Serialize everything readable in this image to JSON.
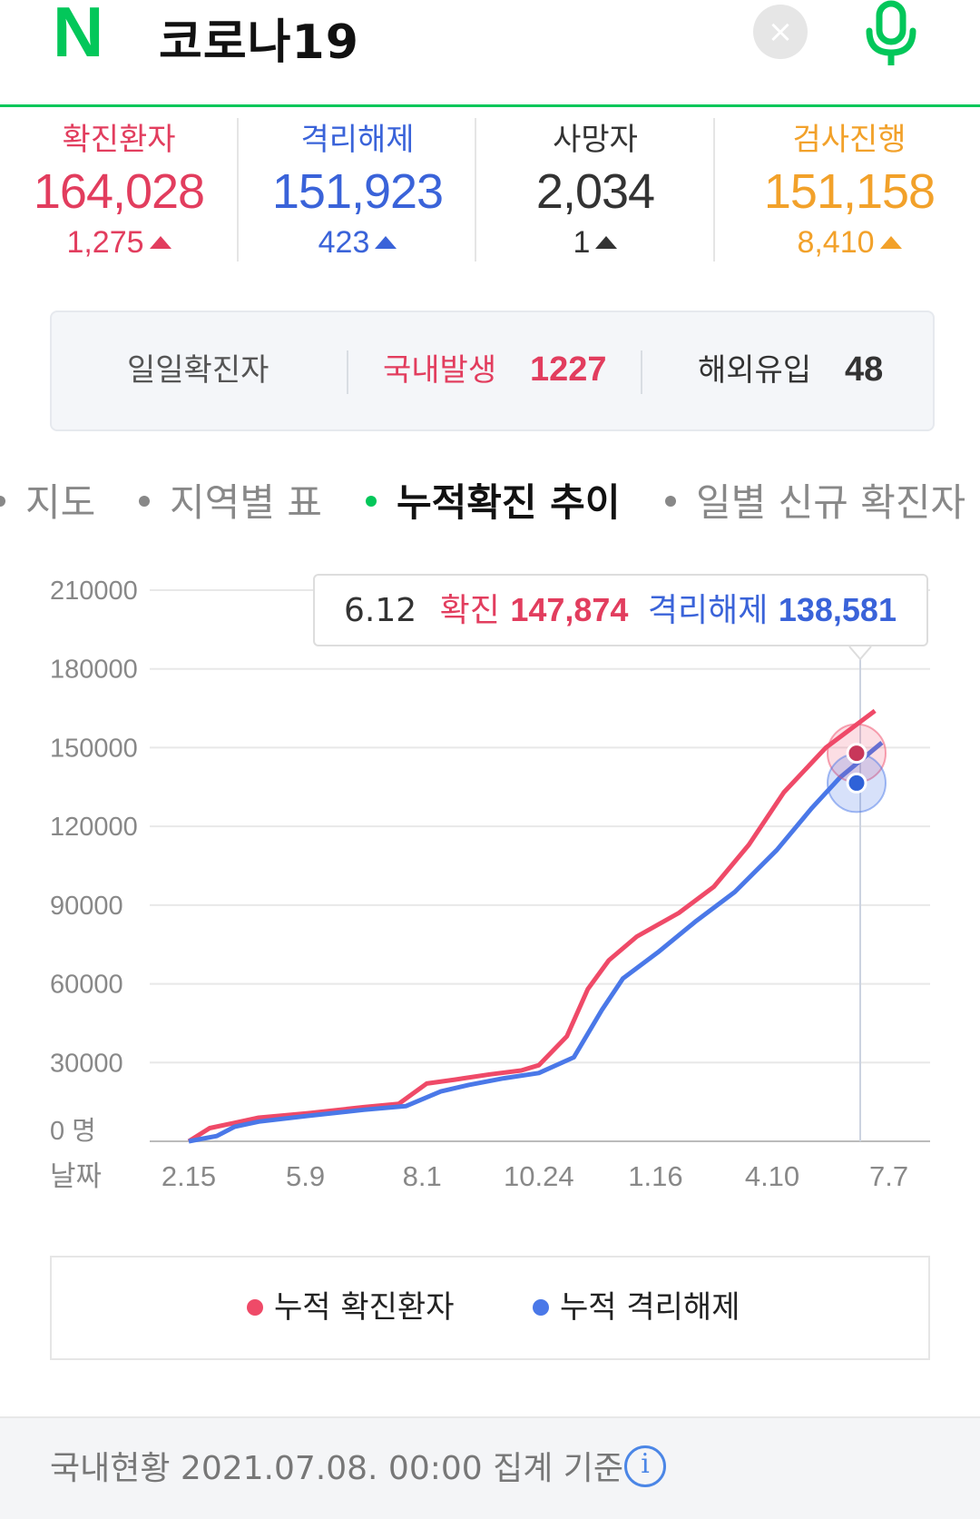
{
  "header": {
    "logo": "N",
    "query": "코로나19",
    "clear_icon": "×",
    "accent": "#03c75a"
  },
  "stats": [
    {
      "label": "확진환자",
      "value": "164,028",
      "delta": "1,275",
      "color": "#e23d5e"
    },
    {
      "label": "격리해제",
      "value": "151,923",
      "delta": "423",
      "color": "#3a63d9"
    },
    {
      "label": "사망자",
      "value": "2,034",
      "delta": "1",
      "color": "#333333"
    },
    {
      "label": "검사진행",
      "value": "151,158",
      "delta": "8,410",
      "color": "#f2a12a"
    }
  ],
  "daily": {
    "label": "일일확진자",
    "domestic_label": "국내발생",
    "domestic_value": "1227",
    "overseas_label": "해외유입",
    "overseas_value": "48"
  },
  "tabs": [
    "지도",
    "지역별 표",
    "누적확진 추이",
    "일별 신규 확진자"
  ],
  "active_tab": "누적확진 추이",
  "tooltip": {
    "date": "6.12",
    "confirmed_label": "확진",
    "confirmed_value": "147,874",
    "released_label": "격리해제",
    "released_value": "138,581"
  },
  "legend": {
    "confirmed": "누적 확진환자",
    "released": "누적 격리해제"
  },
  "footer": {
    "text": "국내현황 2021.07.08. 00:00 집계 기준",
    "info_icon": "i"
  },
  "chart_data": {
    "type": "line",
    "y_ticks": [
      "210000",
      "180000",
      "150000",
      "120000",
      "90000",
      "60000",
      "30000",
      "0 명"
    ],
    "ylim": [
      0,
      210000
    ],
    "x_title": "날짜",
    "x_ticks": [
      "2.15",
      "5.9",
      "8.1",
      "10.24",
      "1.16",
      "4.10",
      "7.7"
    ],
    "series": [
      {
        "name": "누적 확진환자",
        "color": "#ef4a68",
        "points": [
          [
            0,
            0
          ],
          [
            0.06,
            5000
          ],
          [
            0.2,
            9000
          ],
          [
            0.34,
            10700
          ],
          [
            0.5,
            13000
          ],
          [
            0.6,
            14300
          ],
          [
            0.68,
            22000
          ],
          [
            0.76,
            23500
          ],
          [
            0.86,
            25500
          ],
          [
            0.95,
            27000
          ],
          [
            1.0,
            29000
          ],
          [
            1.08,
            40000
          ],
          [
            1.14,
            58000
          ],
          [
            1.2,
            69000
          ],
          [
            1.28,
            78000
          ],
          [
            1.4,
            87000
          ],
          [
            1.5,
            97000
          ],
          [
            1.6,
            113000
          ],
          [
            1.7,
            133000
          ],
          [
            1.82,
            150000
          ],
          [
            1.96,
            164028
          ]
        ]
      },
      {
        "name": "누적 격리해제",
        "color": "#4a78e8",
        "points": [
          [
            0,
            0
          ],
          [
            0.08,
            2000
          ],
          [
            0.13,
            5500
          ],
          [
            0.2,
            7500
          ],
          [
            0.34,
            9700
          ],
          [
            0.5,
            12000
          ],
          [
            0.62,
            13400
          ],
          [
            0.72,
            19000
          ],
          [
            0.8,
            21500
          ],
          [
            0.9,
            24000
          ],
          [
            1.0,
            26000
          ],
          [
            1.1,
            32000
          ],
          [
            1.18,
            50000
          ],
          [
            1.24,
            62000
          ],
          [
            1.34,
            72000
          ],
          [
            1.45,
            84000
          ],
          [
            1.56,
            95000
          ],
          [
            1.68,
            111000
          ],
          [
            1.78,
            127000
          ],
          [
            1.86,
            138581
          ],
          [
            1.98,
            151923
          ]
        ]
      }
    ],
    "highlight": {
      "date": "6.12",
      "confirmed": 147874,
      "released": 138581
    }
  }
}
